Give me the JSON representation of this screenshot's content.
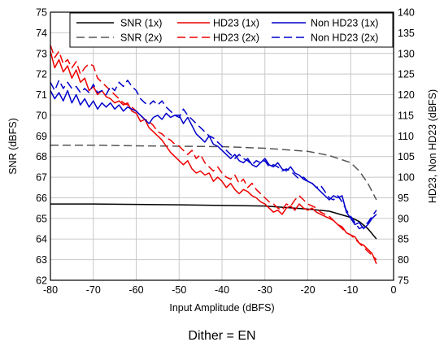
{
  "chart_data": {
    "type": "line",
    "title": "",
    "caption": "Dither = EN",
    "xlabel": "Input Amplitude (dBFS)",
    "ylabel_left": "SNR (dBFS)",
    "ylabel_right": "HD23, Non HD23 (dBFS)",
    "xlim": [
      -80,
      0
    ],
    "ylim_left": [
      62,
      75
    ],
    "ylim_right": [
      75,
      140
    ],
    "x_ticks": [
      -80,
      -70,
      -60,
      -50,
      -40,
      -30,
      -20,
      -10,
      0
    ],
    "y_left_ticks": [
      62,
      63,
      64,
      65,
      66,
      67,
      68,
      69,
      70,
      71,
      72,
      73,
      74,
      75
    ],
    "y_right_ticks": [
      75,
      80,
      85,
      90,
      95,
      100,
      105,
      110,
      115,
      120,
      125,
      130,
      135,
      140
    ],
    "grid": true,
    "legend_position": "top-right",
    "colors": {
      "snr": "#000000",
      "snr2x": "#555555",
      "hd23": "#ee0000",
      "nonhd23": "#0000cc",
      "grid": "#c8c8c8"
    },
    "series": [
      {
        "name": "SNR (1x)",
        "axis": "left",
        "style": "solid",
        "color": "#000000",
        "x": [
          -80,
          -75,
          -70,
          -60,
          -50,
          -40,
          -30,
          -20,
          -15,
          -10,
          -8,
          -6,
          -4
        ],
        "y": [
          65.7,
          65.7,
          65.7,
          65.68,
          65.66,
          65.63,
          65.6,
          65.45,
          65.35,
          65.05,
          64.85,
          64.5,
          64.0
        ]
      },
      {
        "name": "SNR (2x)",
        "axis": "left",
        "style": "dashed",
        "color": "#555555",
        "x": [
          -80,
          -70,
          -60,
          -50,
          -40,
          -30,
          -20,
          -15,
          -10,
          -8,
          -6,
          -4
        ],
        "y": [
          68.55,
          68.55,
          68.52,
          68.5,
          68.48,
          68.4,
          68.25,
          68.05,
          67.7,
          67.3,
          66.7,
          65.9
        ]
      },
      {
        "name": "HD23 (1x)",
        "axis": "right",
        "style": "solid",
        "color": "#ee0000",
        "x": [
          -80,
          -79,
          -78,
          -77,
          -76,
          -75,
          -74,
          -73,
          -72,
          -71,
          -70,
          -69,
          -68,
          -67,
          -66,
          -65,
          -64,
          -63,
          -62,
          -61,
          -60,
          -59,
          -58,
          -57,
          -56,
          -55,
          -54,
          -53,
          -52,
          -51,
          -50,
          -49,
          -48,
          -47,
          -46,
          -45,
          -44,
          -43,
          -42,
          -41,
          -40,
          -39,
          -38,
          -37,
          -36,
          -35,
          -34,
          -33,
          -32,
          -31,
          -30,
          -29,
          -28,
          -27,
          -26,
          -25,
          -24,
          -23,
          -22,
          -21,
          -20,
          -19,
          -18,
          -17,
          -16,
          -15,
          -14,
          -13,
          -12,
          -11,
          -10,
          -9,
          -8,
          -7,
          -6,
          -5,
          -4
        ],
        "y": [
          130.5,
          126.5,
          128.5,
          125.5,
          127.0,
          124.0,
          126.0,
          123.0,
          124.0,
          121.0,
          122.0,
          120.0,
          121.0,
          119.5,
          119.0,
          118.0,
          118.5,
          117.5,
          118.0,
          116.0,
          115.5,
          113.5,
          114.0,
          112.0,
          111.0,
          110.0,
          109.0,
          107.5,
          106.0,
          105.0,
          104.0,
          103.0,
          104.0,
          102.0,
          101.0,
          101.5,
          100.5,
          101.0,
          99.0,
          100.0,
          99.0,
          97.5,
          98.5,
          97.0,
          96.0,
          97.0,
          96.5,
          95.5,
          95.0,
          94.0,
          93.5,
          92.5,
          91.5,
          92.0,
          91.0,
          92.5,
          93.0,
          92.0,
          93.5,
          92.5,
          92.0,
          92.5,
          91.5,
          91.0,
          90.5,
          90.0,
          89.5,
          88.5,
          88.0,
          86.5,
          86.0,
          85.5,
          84.0,
          83.5,
          82.5,
          81.5,
          79.0
        ]
      },
      {
        "name": "HD23 (2x)",
        "axis": "right",
        "style": "dashed",
        "color": "#ee0000",
        "x": [
          -80,
          -79,
          -78,
          -77,
          -76,
          -75,
          -74,
          -73,
          -72,
          -71,
          -70,
          -69,
          -68,
          -67,
          -66,
          -65,
          -64,
          -63,
          -62,
          -61,
          -60,
          -59,
          -58,
          -57,
          -56,
          -55,
          -54,
          -53,
          -52,
          -51,
          -50,
          -49,
          -48,
          -47,
          -46,
          -45,
          -44,
          -43,
          -42,
          -41,
          -40,
          -39,
          -38,
          -37,
          -36,
          -35,
          -34,
          -33,
          -32,
          -31,
          -30,
          -29,
          -28,
          -27,
          -26,
          -25,
          -24,
          -23,
          -22,
          -21,
          -20,
          -19,
          -18,
          -17,
          -16,
          -15,
          -14,
          -13,
          -12,
          -11,
          -10,
          -9,
          -8,
          -7,
          -6,
          -5,
          -4
        ],
        "y": [
          132.0,
          129.0,
          130.5,
          127.5,
          128.5,
          126.5,
          128.0,
          125.0,
          126.5,
          127.5,
          127.0,
          124.0,
          123.0,
          122.0,
          121.0,
          120.0,
          119.0,
          118.0,
          117.5,
          117.0,
          116.0,
          115.0,
          114.0,
          113.5,
          112.5,
          111.0,
          110.5,
          109.5,
          109.0,
          108.0,
          107.5,
          106.5,
          105.5,
          106.5,
          104.5,
          105.5,
          103.5,
          102.5,
          101.5,
          102.5,
          101.0,
          100.0,
          99.5,
          100.5,
          98.5,
          99.5,
          97.5,
          98.5,
          97.0,
          96.0,
          95.0,
          94.0,
          93.5,
          92.5,
          92.0,
          93.5,
          93.0,
          94.5,
          95.5,
          94.5,
          93.5,
          93.0,
          92.5,
          91.5,
          91.0,
          90.5,
          89.5,
          88.5,
          87.5,
          86.5,
          86.0,
          85.0,
          84.0,
          83.0,
          82.0,
          81.0,
          80.0
        ]
      },
      {
        "name": "Non HD23 (1x)",
        "axis": "right",
        "style": "solid",
        "color": "#0000cc",
        "x": [
          -80,
          -79,
          -78,
          -77,
          -76,
          -75,
          -74,
          -73,
          -72,
          -71,
          -70,
          -69,
          -68,
          -67,
          -66,
          -65,
          -64,
          -63,
          -62,
          -61,
          -60,
          -59,
          -58,
          -57,
          -56,
          -55,
          -54,
          -53,
          -52,
          -51,
          -50,
          -49,
          -48,
          -47,
          -46,
          -45,
          -44,
          -43,
          -42,
          -41,
          -40,
          -39,
          -38,
          -37,
          -36,
          -35,
          -34,
          -33,
          -32,
          -31,
          -30,
          -29,
          -28,
          -27,
          -26,
          -25,
          -24,
          -23,
          -22,
          -21,
          -20,
          -19,
          -18,
          -17,
          -16,
          -15,
          -14,
          -13,
          -12,
          -11,
          -10,
          -9,
          -8,
          -7,
          -6,
          -5,
          -4
        ],
        "y": [
          121.0,
          119.0,
          120.5,
          118.5,
          121.0,
          118.0,
          120.0,
          117.5,
          119.0,
          117.0,
          118.5,
          116.5,
          118.0,
          117.0,
          118.0,
          116.5,
          117.5,
          116.0,
          117.0,
          116.5,
          116.0,
          115.0,
          114.0,
          113.0,
          114.5,
          115.0,
          114.0,
          115.5,
          114.5,
          115.0,
          115.0,
          113.0,
          114.5,
          112.5,
          110.5,
          109.5,
          108.5,
          110.0,
          108.0,
          107.5,
          106.5,
          105.5,
          104.5,
          105.5,
          104.0,
          103.5,
          104.5,
          103.0,
          102.5,
          103.5,
          104.5,
          103.0,
          102.5,
          103.5,
          102.0,
          101.5,
          102.5,
          101.0,
          100.5,
          99.5,
          99.0,
          98.5,
          97.5,
          96.5,
          95.5,
          94.5,
          95.5,
          95.0,
          95.5,
          91.5,
          90.0,
          88.5,
          89.0,
          87.5,
          88.5,
          90.0,
          91.0
        ]
      },
      {
        "name": "Non HD23 (2x)",
        "axis": "right",
        "style": "dashed",
        "color": "#0000cc",
        "x": [
          -80,
          -79,
          -78,
          -77,
          -76,
          -75,
          -74,
          -73,
          -72,
          -71,
          -70,
          -69,
          -68,
          -67,
          -66,
          -65,
          -64,
          -63,
          -62,
          -61,
          -60,
          -59,
          -58,
          -57,
          -56,
          -55,
          -54,
          -53,
          -52,
          -51,
          -50,
          -49,
          -48,
          -47,
          -46,
          -45,
          -44,
          -43,
          -42,
          -41,
          -40,
          -39,
          -38,
          -37,
          -36,
          -35,
          -34,
          -33,
          -32,
          -31,
          -30,
          -29,
          -28,
          -27,
          -26,
          -25,
          -24,
          -23,
          -22,
          -21,
          -20,
          -19,
          -18,
          -17,
          -16,
          -15,
          -14,
          -13,
          -12,
          -11,
          -10,
          -9,
          -8,
          -7,
          -6,
          -5,
          -4
        ],
        "y": [
          123.0,
          121.0,
          123.5,
          121.5,
          123.0,
          121.5,
          122.0,
          120.5,
          121.5,
          120.5,
          122.5,
          120.5,
          121.0,
          120.0,
          122.0,
          121.0,
          123.0,
          122.0,
          123.5,
          122.0,
          121.0,
          119.0,
          118.0,
          117.5,
          118.5,
          117.5,
          118.5,
          117.0,
          116.0,
          115.0,
          114.5,
          116.5,
          115.0,
          114.0,
          113.0,
          112.0,
          111.0,
          110.0,
          109.5,
          108.5,
          107.5,
          106.5,
          105.5,
          104.5,
          105.5,
          104.5,
          104.0,
          103.0,
          104.0,
          103.5,
          104.0,
          102.5,
          103.0,
          102.5,
          101.5,
          102.0,
          101.5,
          100.5,
          99.5,
          100.0,
          99.0,
          98.5,
          97.5,
          98.0,
          96.5,
          95.0,
          94.5,
          95.5,
          94.0,
          92.0,
          90.5,
          89.0,
          87.5,
          88.0,
          89.0,
          90.5,
          92.0
        ]
      }
    ]
  }
}
